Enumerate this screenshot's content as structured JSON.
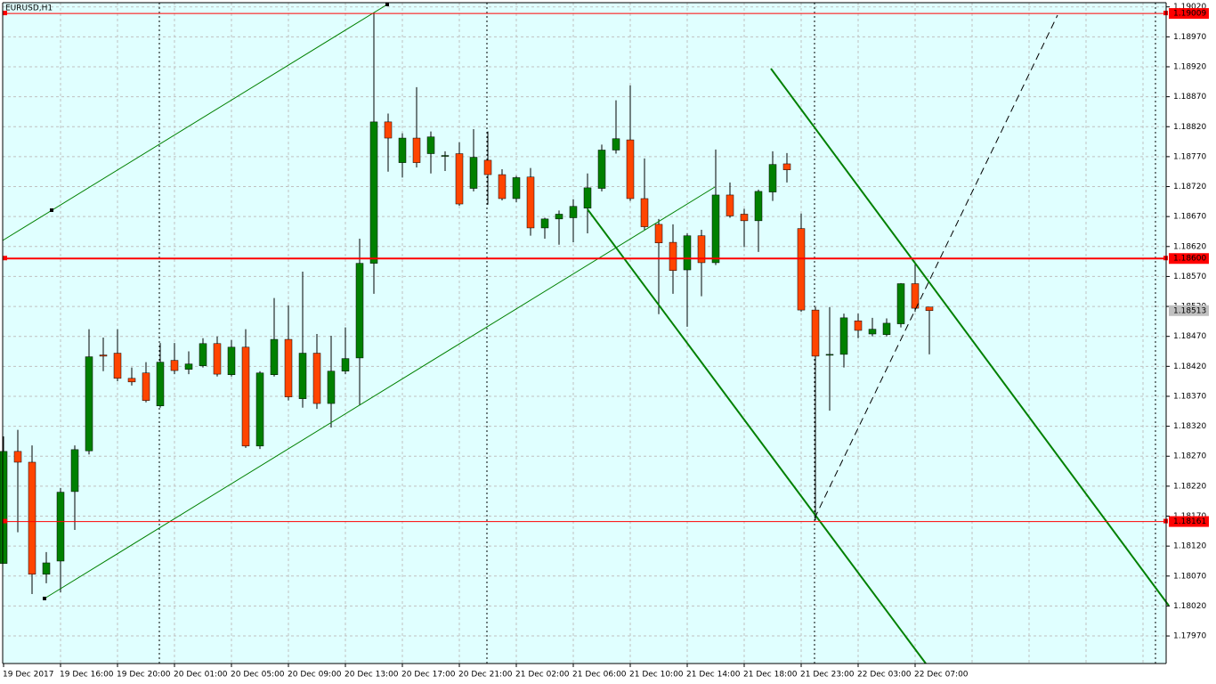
{
  "chart_data": {
    "type": "candlestick",
    "title": "EURUSD,H1",
    "categories": [
      "19 Dec 2017",
      null,
      null,
      null,
      "19 Dec 16:00",
      null,
      null,
      null,
      "19 Dec 20:00",
      null,
      null,
      null,
      "20 Dec 01:00",
      null,
      null,
      null,
      "20 Dec 05:00",
      null,
      null,
      null,
      "20 Dec 09:00",
      null,
      null,
      null,
      "20 Dec 13:00",
      null,
      null,
      null,
      "20 Dec 17:00",
      null,
      null,
      null,
      "20 Dec 21:00",
      null,
      null,
      null,
      "21 Dec 02:00",
      null,
      null,
      null,
      "21 Dec 06:00",
      null,
      null,
      null,
      "21 Dec 10:00",
      null,
      null,
      null,
      "21 Dec 14:00",
      null,
      null,
      null,
      "21 Dec 18:00",
      null,
      null,
      null,
      "21 Dec 23:00",
      null,
      null,
      null,
      "22 Dec 03:00",
      null,
      null,
      null,
      "22 Dec 07:00",
      null
    ],
    "open": [
      1.18091,
      1.18278,
      1.1826,
      1.18073,
      1.18095,
      1.18211,
      1.18279,
      1.18439,
      1.18442,
      1.184,
      1.18409,
      1.18354,
      1.1843,
      1.18415,
      1.18421,
      1.18458,
      1.18406,
      1.18452,
      1.18287,
      1.18406,
      1.18465,
      1.18366,
      1.18442,
      1.18358,
      1.18412,
      1.18434,
      1.18592,
      1.18828,
      1.1876,
      1.18801,
      1.18775,
      1.18772,
      1.18775,
      1.18717,
      1.18764,
      1.1874,
      1.187,
      1.18736,
      1.18651,
      1.18666,
      1.18668,
      1.18684,
      1.18717,
      1.18781,
      1.18798,
      1.187,
      1.18657,
      1.18627,
      1.18581,
      1.18638,
      1.18593,
      1.18706,
      1.18674,
      1.18663,
      1.18711,
      1.18758,
      1.1865,
      1.18514,
      1.1844,
      1.1844,
      1.18496,
      1.18474,
      1.18473,
      1.18491,
      1.18558,
      1.18519
    ],
    "high": [
      1.18303,
      1.18314,
      1.18288,
      1.1811,
      1.18217,
      1.18288,
      1.18482,
      1.18468,
      1.18482,
      1.18418,
      1.18427,
      1.18459,
      1.18459,
      1.18445,
      1.18467,
      1.1847,
      1.18464,
      1.18482,
      1.18412,
      1.18534,
      1.18522,
      1.18578,
      1.18474,
      1.18471,
      1.18485,
      1.18633,
      1.1901,
      1.18842,
      1.18809,
      1.18886,
      1.18812,
      1.18779,
      1.18794,
      1.18816,
      1.18812,
      1.18749,
      1.18738,
      1.18751,
      1.18668,
      1.1868,
      1.18699,
      1.18742,
      1.1879,
      1.18864,
      1.18889,
      1.18767,
      1.18666,
      1.18657,
      1.18642,
      1.18648,
      1.18782,
      1.18727,
      1.18683,
      1.18715,
      1.18779,
      1.18776,
      1.18675,
      1.18519,
      1.18519,
      1.18508,
      1.18508,
      1.18501,
      1.185,
      1.18559,
      1.18592,
      1.18519
    ],
    "low": [
      1.18091,
      1.18143,
      1.1804,
      1.18058,
      1.18043,
      1.18147,
      1.18273,
      1.18412,
      1.18395,
      1.18388,
      1.1836,
      1.18351,
      1.18407,
      1.18407,
      1.18418,
      1.18403,
      1.18403,
      1.18284,
      1.18282,
      1.18403,
      1.18363,
      1.18351,
      1.18349,
      1.18318,
      1.18407,
      1.18355,
      1.18541,
      1.18745,
      1.18735,
      1.18752,
      1.18742,
      1.18746,
      1.18688,
      1.18712,
      1.1869,
      1.18697,
      1.18694,
      1.18638,
      1.18633,
      1.18623,
      1.18627,
      1.18642,
      1.18712,
      1.18775,
      1.18696,
      1.18648,
      1.18507,
      1.18541,
      1.18486,
      1.18537,
      1.18589,
      1.18668,
      1.18619,
      1.18611,
      1.18696,
      1.18727,
      1.18511,
      1.18163,
      1.18346,
      1.18418,
      1.18467,
      1.1847,
      1.1847,
      1.18485,
      1.18511,
      1.1844
    ],
    "close": [
      1.18278,
      1.1826,
      1.18073,
      1.18092,
      1.1821,
      1.18281,
      1.18436,
      1.18437,
      1.184,
      1.18394,
      1.18363,
      1.18427,
      1.18413,
      1.18424,
      1.18458,
      1.18407,
      1.18452,
      1.18287,
      1.18409,
      1.18465,
      1.18369,
      1.18442,
      1.18358,
      1.18412,
      1.18433,
      1.18592,
      1.18828,
      1.18801,
      1.18801,
      1.1876,
      1.18803,
      1.18772,
      1.18691,
      1.18769,
      1.1874,
      1.187,
      1.18735,
      1.18651,
      1.18666,
      1.18674,
      1.18687,
      1.18718,
      1.18781,
      1.188,
      1.187,
      1.18653,
      1.18626,
      1.1858,
      1.18638,
      1.18593,
      1.18706,
      1.18671,
      1.18663,
      1.18712,
      1.18757,
      1.18748,
      1.18514,
      1.18437,
      1.1844,
      1.18501,
      1.1848,
      1.18482,
      1.18492,
      1.18558,
      1.18517,
      1.18513
    ],
    "up_color": "#008000",
    "down_color": "#ff4500",
    "ylim": [
      1.17924,
      1.19027
    ],
    "yticks": [
      {
        "value": 1.1902,
        "label": "1.19020"
      },
      {
        "value": 1.1897,
        "label": "1.18970"
      },
      {
        "value": 1.1892,
        "label": "1.18920"
      },
      {
        "value": 1.1887,
        "label": "1.18870"
      },
      {
        "value": 1.1882,
        "label": "1.18820"
      },
      {
        "value": 1.1877,
        "label": "1.18770"
      },
      {
        "value": 1.1872,
        "label": "1.18720"
      },
      {
        "value": 1.1867,
        "label": "1.18670"
      },
      {
        "value": 1.1862,
        "label": "1.18620"
      },
      {
        "value": 1.1857,
        "label": "1.18570"
      },
      {
        "value": 1.1852,
        "label": "1.18520"
      },
      {
        "value": 1.1847,
        "label": "1.18470"
      },
      {
        "value": 1.1842,
        "label": "1.18420"
      },
      {
        "value": 1.1837,
        "label": "1.18370"
      },
      {
        "value": 1.1832,
        "label": "1.18320"
      },
      {
        "value": 1.1827,
        "label": "1.18270"
      },
      {
        "value": 1.1822,
        "label": "1.18220"
      },
      {
        "value": 1.1817,
        "label": "1.18170"
      },
      {
        "value": 1.1812,
        "label": "1.18120"
      },
      {
        "value": 1.1807,
        "label": "1.18070"
      },
      {
        "value": 1.1802,
        "label": "1.18020"
      },
      {
        "value": 1.1797,
        "label": "1.17970"
      }
    ],
    "grid": true,
    "levels": [
      {
        "value": 1.19009,
        "label": "1.19009",
        "color": "#ff0000"
      },
      {
        "value": 1.186,
        "label": "1.18600",
        "color": "#ff0000"
      },
      {
        "value": 1.18161,
        "label": "1.18161",
        "color": "#ff0000"
      }
    ],
    "last_price": {
      "value": 1.18513,
      "label": "1.18513",
      "color": "#c0c0c0"
    }
  }
}
